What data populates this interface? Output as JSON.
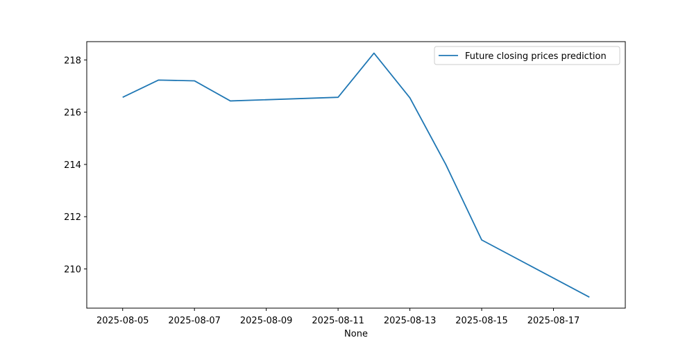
{
  "chart_data": {
    "type": "line",
    "title": "",
    "xlabel": "None",
    "ylabel": "",
    "x_axis_type": "date",
    "xlim": [
      "2025-08-04",
      "2025-08-19"
    ],
    "ylim": [
      208.5,
      218.7
    ],
    "x_ticks": [
      "2025-08-05",
      "2025-08-07",
      "2025-08-09",
      "2025-08-11",
      "2025-08-13",
      "2025-08-15",
      "2025-08-17"
    ],
    "y_ticks": [
      210,
      212,
      214,
      216,
      218
    ],
    "grid": false,
    "legend_position": "top-right",
    "series": [
      {
        "name": "Future closing prices prediction",
        "color": "#1f77b4",
        "x": [
          "2025-08-05",
          "2025-08-06",
          "2025-08-07",
          "2025-08-08",
          "2025-08-11",
          "2025-08-12",
          "2025-08-13",
          "2025-08-14",
          "2025-08-15",
          "2025-08-18"
        ],
        "y": [
          216.57,
          217.23,
          217.2,
          216.43,
          216.57,
          218.26,
          216.55,
          214.0,
          211.11,
          208.92
        ]
      }
    ]
  }
}
